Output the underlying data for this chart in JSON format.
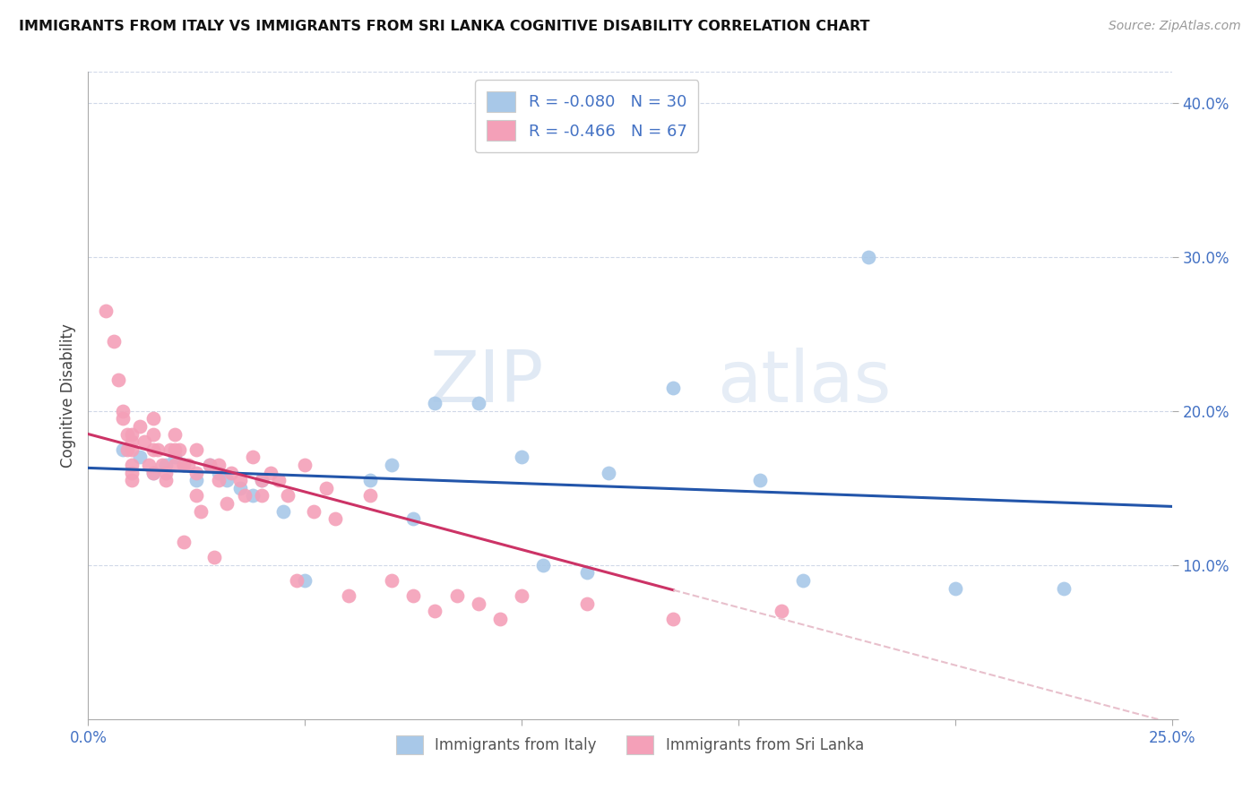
{
  "title": "IMMIGRANTS FROM ITALY VS IMMIGRANTS FROM SRI LANKA COGNITIVE DISABILITY CORRELATION CHART",
  "source": "Source: ZipAtlas.com",
  "ylabel": "Cognitive Disability",
  "x_min": 0.0,
  "x_max": 0.25,
  "y_min": 0.0,
  "y_max": 0.42,
  "italy_color": "#a8c8e8",
  "srilanka_color": "#f4a0b8",
  "italy_line_color": "#2255aa",
  "srilanka_line_color": "#cc3366",
  "srilanka_line_ext_color": "#e8c0cc",
  "legend_italy_label": "Immigrants from Italy",
  "legend_srilanka_label": "Immigrants from Sri Lanka",
  "R_italy": "-0.080",
  "N_italy": "30",
  "R_srilanka": "-0.466",
  "N_srilanka": "67",
  "watermark_zip": "ZIP",
  "watermark_atlas": "atlas",
  "italy_line_x0": 0.0,
  "italy_line_y0": 0.163,
  "italy_line_x1": 0.25,
  "italy_line_y1": 0.138,
  "srilanka_line_x0": 0.0,
  "srilanka_line_y0": 0.185,
  "srilanka_line_x1": 0.22,
  "srilanka_line_y1": 0.02,
  "italy_scatter_x": [
    0.008,
    0.012,
    0.015,
    0.018,
    0.02,
    0.022,
    0.025,
    0.028,
    0.03,
    0.032,
    0.035,
    0.038,
    0.04,
    0.045,
    0.05,
    0.065,
    0.07,
    0.075,
    0.08,
    0.09,
    0.1,
    0.105,
    0.115,
    0.12,
    0.135,
    0.155,
    0.165,
    0.18,
    0.2,
    0.225
  ],
  "italy_scatter_y": [
    0.175,
    0.17,
    0.16,
    0.165,
    0.17,
    0.165,
    0.155,
    0.165,
    0.16,
    0.155,
    0.15,
    0.145,
    0.155,
    0.135,
    0.09,
    0.155,
    0.165,
    0.13,
    0.205,
    0.205,
    0.17,
    0.1,
    0.095,
    0.16,
    0.215,
    0.155,
    0.09,
    0.3,
    0.085,
    0.085
  ],
  "srilanka_scatter_x": [
    0.004,
    0.006,
    0.007,
    0.008,
    0.008,
    0.009,
    0.009,
    0.01,
    0.01,
    0.01,
    0.01,
    0.01,
    0.01,
    0.012,
    0.013,
    0.014,
    0.015,
    0.015,
    0.015,
    0.015,
    0.016,
    0.017,
    0.018,
    0.018,
    0.019,
    0.02,
    0.02,
    0.02,
    0.021,
    0.022,
    0.022,
    0.023,
    0.025,
    0.025,
    0.025,
    0.026,
    0.028,
    0.029,
    0.03,
    0.03,
    0.032,
    0.033,
    0.035,
    0.036,
    0.038,
    0.04,
    0.04,
    0.042,
    0.044,
    0.046,
    0.048,
    0.05,
    0.052,
    0.055,
    0.057,
    0.06,
    0.065,
    0.07,
    0.075,
    0.08,
    0.085,
    0.09,
    0.095,
    0.1,
    0.115,
    0.135,
    0.16
  ],
  "srilanka_scatter_y": [
    0.265,
    0.245,
    0.22,
    0.2,
    0.195,
    0.185,
    0.175,
    0.185,
    0.18,
    0.175,
    0.165,
    0.16,
    0.155,
    0.19,
    0.18,
    0.165,
    0.195,
    0.185,
    0.175,
    0.16,
    0.175,
    0.165,
    0.16,
    0.155,
    0.175,
    0.185,
    0.175,
    0.165,
    0.175,
    0.165,
    0.115,
    0.165,
    0.175,
    0.16,
    0.145,
    0.135,
    0.165,
    0.105,
    0.165,
    0.155,
    0.14,
    0.16,
    0.155,
    0.145,
    0.17,
    0.155,
    0.145,
    0.16,
    0.155,
    0.145,
    0.09,
    0.165,
    0.135,
    0.15,
    0.13,
    0.08,
    0.145,
    0.09,
    0.08,
    0.07,
    0.08,
    0.075,
    0.065,
    0.08,
    0.075,
    0.065,
    0.07
  ]
}
